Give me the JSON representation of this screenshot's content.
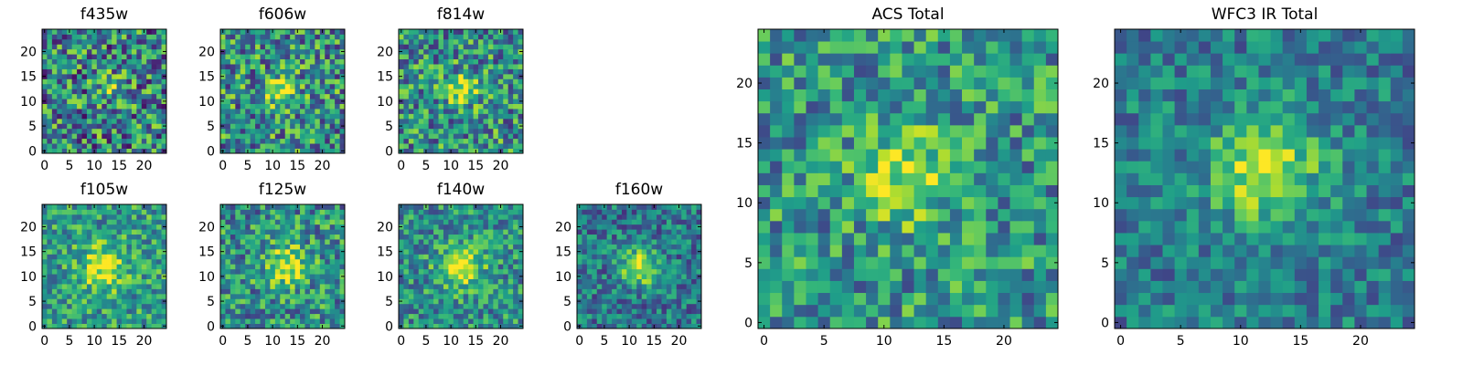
{
  "chart_data": [
    {
      "type": "heatmap",
      "title": "f435w",
      "colormap": "viridis",
      "grid_size": 25,
      "xlim": [
        0,
        24
      ],
      "ylim": [
        0,
        24
      ],
      "xticks": [
        0,
        5,
        10,
        15,
        20
      ],
      "yticks": [
        0,
        5,
        10,
        15,
        20
      ],
      "peak": {
        "x": 13,
        "y": 13,
        "radius": 1.8,
        "amplitude": 0.35
      },
      "noise": 0.42,
      "base": 0.45,
      "seed": 435
    },
    {
      "type": "heatmap",
      "title": "f606w",
      "colormap": "viridis",
      "grid_size": 25,
      "xlim": [
        0,
        24
      ],
      "ylim": [
        0,
        24
      ],
      "xticks": [
        0,
        5,
        10,
        15,
        20
      ],
      "yticks": [
        0,
        5,
        10,
        15,
        20
      ],
      "peak": {
        "x": 12,
        "y": 12,
        "radius": 2.0,
        "amplitude": 0.5
      },
      "noise": 0.38,
      "base": 0.5,
      "seed": 606
    },
    {
      "type": "heatmap",
      "title": "f814w",
      "colormap": "viridis",
      "grid_size": 25,
      "xlim": [
        0,
        24
      ],
      "ylim": [
        0,
        24
      ],
      "xticks": [
        0,
        5,
        10,
        15,
        20
      ],
      "yticks": [
        0,
        5,
        10,
        15,
        20
      ],
      "peak": {
        "x": 12,
        "y": 12,
        "radius": 2.0,
        "amplitude": 0.55
      },
      "noise": 0.36,
      "base": 0.5,
      "seed": 814
    },
    {
      "type": "heatmap",
      "title": "f105w",
      "colormap": "viridis",
      "grid_size": 25,
      "xlim": [
        0,
        24
      ],
      "ylim": [
        0,
        24
      ],
      "xticks": [
        0,
        5,
        10,
        15,
        20
      ],
      "yticks": [
        0,
        5,
        10,
        15,
        20
      ],
      "peak": {
        "x": 12,
        "y": 12,
        "radius": 3.0,
        "amplitude": 0.45
      },
      "noise": 0.28,
      "base": 0.55,
      "seed": 105
    },
    {
      "type": "heatmap",
      "title": "f125w",
      "colormap": "viridis",
      "grid_size": 25,
      "xlim": [
        0,
        24
      ],
      "ylim": [
        0,
        24
      ],
      "xticks": [
        0,
        5,
        10,
        15,
        20
      ],
      "yticks": [
        0,
        5,
        10,
        15,
        20
      ],
      "peak": {
        "x": 13,
        "y": 12,
        "radius": 3.0,
        "amplitude": 0.5
      },
      "noise": 0.32,
      "base": 0.5,
      "seed": 125
    },
    {
      "type": "heatmap",
      "title": "f140w",
      "colormap": "viridis",
      "grid_size": 25,
      "xlim": [
        0,
        24
      ],
      "ylim": [
        0,
        24
      ],
      "xticks": [
        0,
        5,
        10,
        15,
        20
      ],
      "yticks": [
        0,
        5,
        10,
        15,
        20
      ],
      "peak": {
        "x": 12,
        "y": 12,
        "radius": 3.0,
        "amplitude": 0.5
      },
      "noise": 0.28,
      "base": 0.5,
      "seed": 140
    },
    {
      "type": "heatmap",
      "title": "f160w",
      "colormap": "viridis",
      "grid_size": 25,
      "xlim": [
        0,
        24
      ],
      "ylim": [
        0,
        24
      ],
      "xticks": [
        0,
        5,
        10,
        15,
        20
      ],
      "yticks": [
        0,
        5,
        10,
        15,
        20
      ],
      "peak": {
        "x": 12,
        "y": 12,
        "radius": 2.6,
        "amplitude": 0.6
      },
      "noise": 0.26,
      "base": 0.4,
      "seed": 160
    },
    {
      "type": "heatmap",
      "title": "ACS Total",
      "colormap": "viridis",
      "grid_size": 25,
      "xlim": [
        0,
        24
      ],
      "ylim": [
        0,
        24
      ],
      "xticks": [
        0,
        5,
        10,
        15,
        20
      ],
      "yticks": [
        0,
        5,
        10,
        15,
        20
      ],
      "peak": {
        "x": 12,
        "y": 12,
        "radius": 2.4,
        "amplitude": 0.45
      },
      "noise": 0.3,
      "base": 0.52,
      "seed": 1001
    },
    {
      "type": "heatmap",
      "title": "WFC3 IR Total",
      "colormap": "viridis",
      "grid_size": 25,
      "xlim": [
        0,
        24
      ],
      "ylim": [
        0,
        24
      ],
      "xticks": [
        0,
        5,
        10,
        15,
        20
      ],
      "yticks": [
        0,
        5,
        10,
        15,
        20
      ],
      "peak": {
        "x": 12,
        "y": 13,
        "radius": 3.2,
        "amplitude": 0.5
      },
      "noise": 0.22,
      "base": 0.42,
      "seed": 2002
    }
  ]
}
